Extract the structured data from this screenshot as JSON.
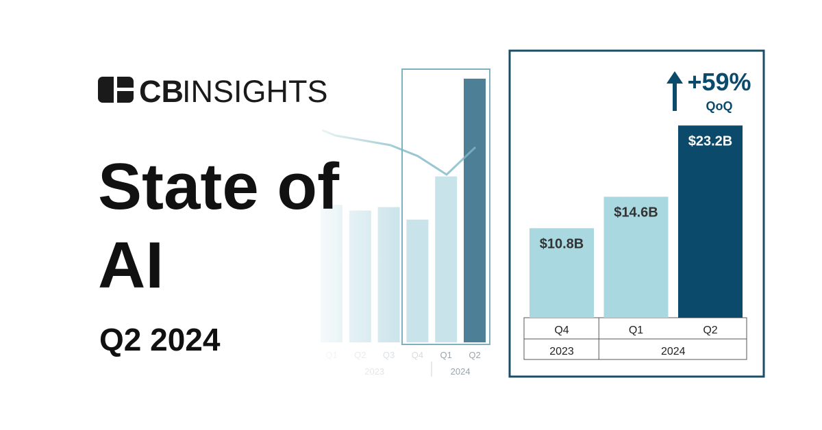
{
  "logo": {
    "bold": "CB",
    "light": "INSIGHTS"
  },
  "title_lines": [
    "State of",
    "AI"
  ],
  "subtitle": "Q2 2024",
  "chart_data": [
    {
      "type": "bar",
      "groups": [
        {
          "label": "2023",
          "categories": [
            "Q1",
            "Q2",
            "Q3",
            "Q4"
          ]
        },
        {
          "label": "2024",
          "categories": [
            "Q1",
            "Q2"
          ]
        }
      ],
      "values": [
        12.1,
        11.6,
        11.9,
        10.8,
        14.6,
        23.2
      ],
      "colors": [
        "#c9e3ea",
        "#c9e3ea",
        "#c9e3ea",
        "#c9e3ea",
        "#c9e3ea",
        "#4d7f96"
      ]
    },
    {
      "type": "bar",
      "groups": [
        {
          "label": "2023",
          "categories": [
            "Q4"
          ]
        },
        {
          "label": "2024",
          "categories": [
            "Q1",
            "Q2"
          ]
        }
      ],
      "values": [
        10.8,
        14.6,
        23.2
      ],
      "value_labels": [
        "$10.8B",
        "$14.6B",
        "$23.2B"
      ],
      "colors": [
        "#a9d8e0",
        "#a9d8e0",
        "#0b4a6b"
      ],
      "annotation": {
        "change": "+59%",
        "period": "QoQ"
      }
    }
  ]
}
